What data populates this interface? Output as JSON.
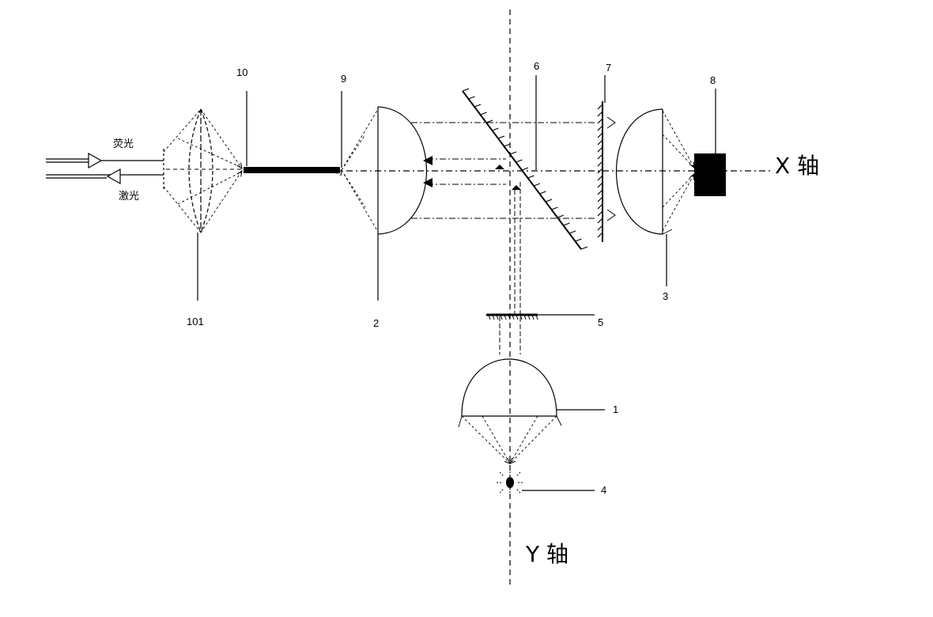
{
  "labels": {
    "n10": "10",
    "n9": "9",
    "n6": "6",
    "n7": "7",
    "n8": "8",
    "n101": "101",
    "n2": "2",
    "n3": "3",
    "n5": "5",
    "n1": "1",
    "n4": "4"
  },
  "beams": {
    "fluorescence": "荧光",
    "laser": "激光"
  },
  "axes": {
    "x": "X 轴",
    "y": "Y 轴"
  }
}
